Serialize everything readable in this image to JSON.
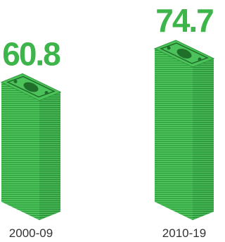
{
  "chart_data": {
    "type": "bar",
    "categories": [
      "2000-09",
      "2010-19"
    ],
    "values": [
      60.8,
      74.7
    ],
    "color": "#4cc25a"
  }
}
